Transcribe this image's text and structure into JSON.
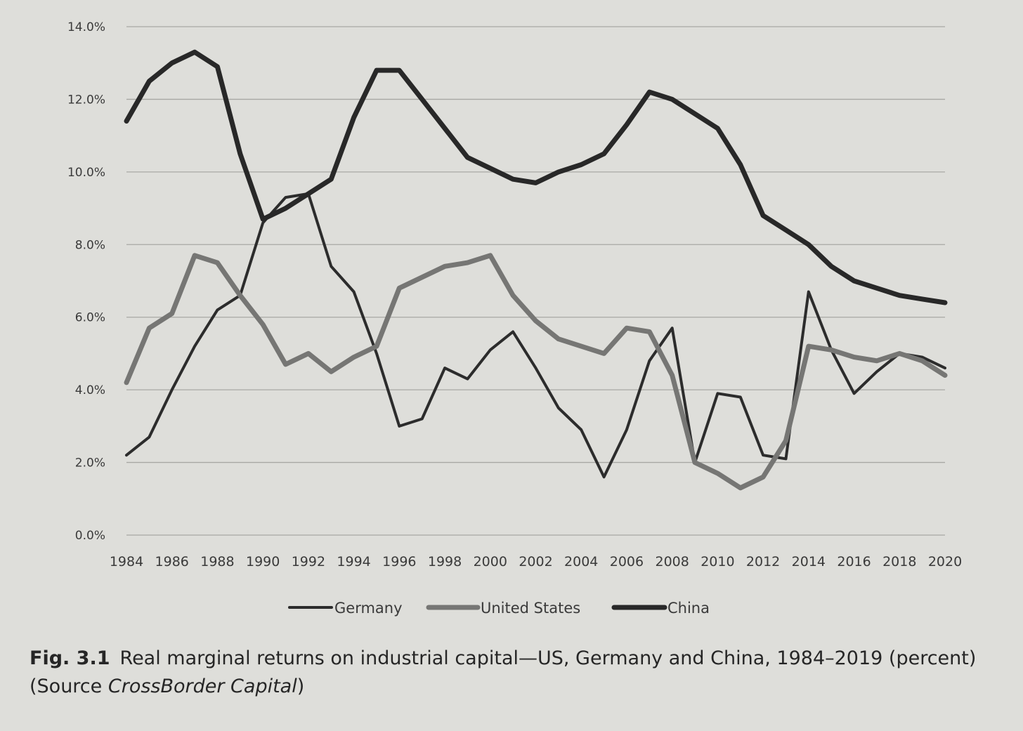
{
  "colors": {
    "background": "#dededa",
    "gridline": "#a8a8a4",
    "germany": "#2c2c2c",
    "united_states": "#767674",
    "china": "#282828"
  },
  "chart_data": {
    "type": "line",
    "title": "",
    "xlabel": "",
    "ylabel": "",
    "ylim": [
      0,
      14
    ],
    "y_tick_values": [
      0,
      2,
      4,
      6,
      8,
      10,
      12,
      14
    ],
    "y_tick_labels": [
      "0.0%",
      "2.0%",
      "4.0%",
      "6.0%",
      "8.0%",
      "10.0%",
      "12.0%",
      "14.0%"
    ],
    "x_tick_labels": [
      "1984",
      "1986",
      "1988",
      "1990",
      "1992",
      "1994",
      "1996",
      "1998",
      "2000",
      "2002",
      "2004",
      "2006",
      "2008",
      "2010",
      "2012",
      "2014",
      "2016",
      "2018",
      "2020"
    ],
    "x": [
      1984,
      1985,
      1986,
      1987,
      1988,
      1989,
      1990,
      1991,
      1992,
      1993,
      1994,
      1995,
      1996,
      1997,
      1998,
      1999,
      2000,
      2001,
      2002,
      2003,
      2004,
      2005,
      2006,
      2007,
      2008,
      2009,
      2010,
      2011,
      2012,
      2013,
      2014,
      2015,
      2016,
      2017,
      2018,
      2019,
      2020
    ],
    "grid": true,
    "legend_position": "bottom-center",
    "series": [
      {
        "name": "Germany",
        "values": [
          2.2,
          2.7,
          4.0,
          5.2,
          6.2,
          6.6,
          8.6,
          9.3,
          9.4,
          7.4,
          6.7,
          5.0,
          3.0,
          3.2,
          4.6,
          4.3,
          5.1,
          5.6,
          4.6,
          3.5,
          2.9,
          1.6,
          2.9,
          4.8,
          5.7,
          2.0,
          3.9,
          3.8,
          2.2,
          2.1,
          6.7,
          5.1,
          3.9,
          4.5,
          5.0,
          4.9,
          4.6
        ]
      },
      {
        "name": "United States",
        "values": [
          4.2,
          5.7,
          6.1,
          7.7,
          7.5,
          6.6,
          5.8,
          4.7,
          5.0,
          4.5,
          4.9,
          5.2,
          6.8,
          7.1,
          7.4,
          7.5,
          7.7,
          6.6,
          5.9,
          5.4,
          5.2,
          5.0,
          5.7,
          5.6,
          4.4,
          2.0,
          1.7,
          1.3,
          1.6,
          2.6,
          5.2,
          5.1,
          4.9,
          4.8,
          5.0,
          4.8,
          4.4
        ]
      },
      {
        "name": "China",
        "values": [
          11.4,
          12.5,
          13.0,
          13.3,
          12.9,
          10.5,
          8.7,
          9.0,
          9.4,
          9.8,
          11.5,
          12.8,
          12.8,
          12.0,
          11.2,
          10.4,
          10.1,
          9.8,
          9.7,
          10.0,
          10.2,
          10.5,
          11.3,
          12.2,
          12.0,
          11.6,
          11.2,
          10.2,
          8.8,
          8.4,
          8.0,
          7.4,
          7.0,
          6.8,
          6.6,
          6.5,
          6.4
        ]
      }
    ]
  },
  "caption": {
    "figure_label": "Fig. 3.1",
    "text": "Real marginal returns on industrial capital—US, Germany and China, 1984–2019 (percent) (Source ",
    "source_name": "CrossBorder Capital",
    "closing": ")"
  }
}
